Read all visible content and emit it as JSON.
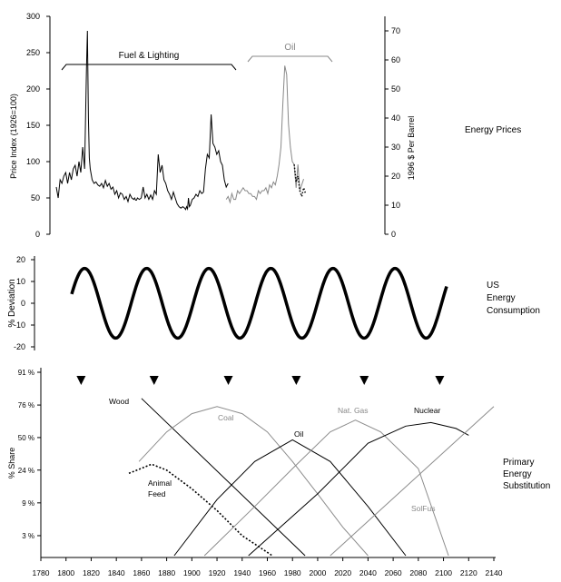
{
  "chart_data": [
    {
      "type": "line",
      "side_label": "Energy Prices",
      "ylabel_left": "Price Index (1926=100)",
      "ylabel_right": "1996 $ Per Barrel",
      "ylim_left": [
        0,
        300
      ],
      "ylim_right": [
        0,
        75
      ],
      "yticks_left": [
        "0",
        "50",
        "100",
        "150",
        "200",
        "250",
        "300"
      ],
      "yticks_right": [
        "0",
        "10",
        "20",
        "30",
        "40",
        "50",
        "60",
        "70"
      ],
      "annotations": [
        {
          "label": "Fuel & Lighting",
          "x_start": 1780,
          "x_end": 1962
        },
        {
          "label": "Oil",
          "x_start": 1982,
          "x_end": 2057
        }
      ],
      "series": [
        {
          "name": "Fuel & Lighting",
          "axis": "left",
          "x": [
            1780,
            1782,
            1784,
            1786,
            1788,
            1790,
            1792,
            1794,
            1796,
            1798,
            1800,
            1802,
            1804,
            1806,
            1808,
            1810,
            1812,
            1813,
            1814,
            1815,
            1816,
            1818,
            1820,
            1822,
            1824,
            1826,
            1828,
            1830,
            1832,
            1834,
            1836,
            1838,
            1840,
            1842,
            1844,
            1846,
            1848,
            1850,
            1852,
            1854,
            1856,
            1858,
            1860,
            1862,
            1863,
            1864,
            1865,
            1866,
            1868,
            1870,
            1872,
            1874,
            1876,
            1878,
            1880,
            1882,
            1884,
            1886,
            1888,
            1890,
            1892,
            1894,
            1896,
            1898,
            1900,
            1902,
            1904,
            1906,
            1908,
            1910,
            1912,
            1914,
            1916,
            1917,
            1918,
            1919,
            1920,
            1921,
            1922,
            1924,
            1926,
            1928,
            1930,
            1932,
            1934,
            1936
          ],
          "y": [
            65,
            50,
            75,
            70,
            80,
            85,
            70,
            85,
            75,
            90,
            95,
            80,
            100,
            85,
            120,
            90,
            230,
            280,
            160,
            105,
            90,
            75,
            70,
            72,
            68,
            66,
            70,
            64,
            74,
            66,
            70,
            62,
            65,
            55,
            60,
            50,
            57,
            55,
            48,
            52,
            45,
            55,
            50,
            48,
            50,
            47,
            47,
            50,
            48,
            50,
            65,
            50,
            55,
            48,
            54,
            48,
            60,
            55,
            110,
            85,
            95,
            75,
            70,
            60,
            55,
            48,
            58,
            50,
            42,
            38,
            36,
            38,
            36,
            34,
            38,
            35,
            50,
            38,
            40,
            48,
            50,
            55,
            52,
            60,
            56,
            58
          ]
        },
        {
          "name": "Fuel & Lighting (cont.)",
          "axis": "left",
          "x": [
            1936,
            1938,
            1940,
            1942,
            1944,
            1946,
            1948,
            1950,
            1952,
            1954,
            1956,
            1958,
            1960,
            1962
          ],
          "y": [
            58,
            90,
            110,
            105,
            165,
            125,
            120,
            110,
            115,
            100,
            95,
            75,
            65,
            70
          ]
        },
        {
          "name": "Oil",
          "axis": "right",
          "x": [
            1960,
            1962,
            1964,
            1966,
            1968,
            1970,
            1972,
            1974,
            1976,
            1978,
            1980,
            1982,
            1984,
            1986,
            1988,
            1990,
            1992,
            1994,
            1996,
            1998,
            2000,
            2002,
            2004,
            2006,
            2008,
            2010,
            2012,
            2014,
            2016,
            2018,
            2020,
            2022,
            2024,
            2026,
            2028,
            2030,
            2032,
            2034,
            2036,
            2038,
            2040,
            2042
          ],
          "y": [
            12,
            13,
            11,
            14,
            12,
            12,
            15,
            14,
            15,
            16,
            15,
            15,
            14,
            14,
            13,
            13,
            12,
            15,
            14,
            15,
            15,
            16,
            14,
            17,
            16,
            18,
            17,
            20,
            24,
            30,
            45,
            58,
            55,
            38,
            30,
            25,
            24,
            16,
            24,
            15,
            17,
            19
          ]
        },
        {
          "name": "Oil (recent, dotted)",
          "axis": "right",
          "x": [
            2032,
            2034,
            2036,
            2038,
            2040,
            2042,
            2044
          ],
          "y": [
            24,
            18,
            20,
            15,
            13,
            16,
            14
          ]
        }
      ]
    },
    {
      "type": "line",
      "side_label": "US\nEnergy\nConsumption",
      "ylabel": "% Deviation",
      "ylim": [
        -20,
        20
      ],
      "yticks": [
        "20",
        "10",
        "0",
        "-10",
        "-20"
      ],
      "series": [
        {
          "name": "Deviation (sine)",
          "x": [
            1800,
            2120
          ],
          "amplitude": 16,
          "period_years": 53,
          "peak_years": [
            1811,
            1864,
            1917,
            1970,
            2023,
            2076
          ]
        }
      ]
    },
    {
      "type": "line",
      "side_label": "Primary\nEnergy\nSubstitution",
      "ylabel": "% Share",
      "yticks": [
        "3 %",
        "9 %",
        "24 %",
        "50 %",
        "76 %",
        "91 %"
      ],
      "ytick_fractions": [
        3,
        9,
        24,
        50,
        76,
        91
      ],
      "xlim": [
        1780,
        2140
      ],
      "xticks": [
        "1780",
        "1800",
        "1820",
        "1840",
        "1860",
        "1880",
        "1900",
        "1920",
        "1940",
        "1960",
        "1980",
        "2000",
        "2020",
        "2040",
        "2060",
        "2080",
        "2100",
        "2120",
        "2140"
      ],
      "markers_years": [
        1812,
        1870,
        1929,
        1983,
        2037,
        2097
      ],
      "series": [
        {
          "name": "Wood",
          "style": "solid-black",
          "x": [
            1860,
            1990
          ],
          "y_pct": [
            80,
            1.5
          ]
        },
        {
          "name": "Animal Feed",
          "style": "dashed",
          "x": [
            1850,
            1868,
            1880,
            1900,
            1920,
            1940,
            1964
          ],
          "y_pct": [
            22,
            28,
            24,
            14,
            7,
            3,
            1.5
          ]
        },
        {
          "name": "Coal",
          "style": "gray-bell",
          "x": [
            1858,
            1880,
            1900,
            1920,
            1940,
            1960,
            1980,
            2000,
            2020,
            2040
          ],
          "y_pct": [
            30,
            55,
            70,
            75,
            70,
            55,
            30,
            12,
            4,
            1.5
          ]
        },
        {
          "name": "Oil",
          "style": "solid-black-bell",
          "x": [
            1886,
            1920,
            1950,
            1980,
            2010,
            2040,
            2070
          ],
          "y_pct": [
            1.5,
            10,
            30,
            48,
            30,
            8,
            1.5
          ]
        },
        {
          "name": "Nat. Gas",
          "style": "gray-bell",
          "x": [
            1910,
            1950,
            1980,
            2010,
            2030,
            2050,
            2080,
            2104
          ],
          "y_pct": [
            1.5,
            8,
            25,
            55,
            65,
            55,
            25,
            1.5
          ]
        },
        {
          "name": "Nuclear",
          "style": "solid-black-bell",
          "x": [
            1945,
            2000,
            2040,
            2070,
            2090,
            2110,
            2120
          ],
          "y_pct": [
            1.5,
            12,
            45,
            60,
            63,
            58,
            52
          ]
        },
        {
          "name": "SolFus",
          "style": "gray-line",
          "x": [
            2010,
            2140
          ],
          "y_pct": [
            1.5,
            75
          ]
        }
      ],
      "labels": [
        {
          "text": "Wood"
        },
        {
          "text": "Coal"
        },
        {
          "text": "Nat. Gas"
        },
        {
          "text": "Nuclear"
        },
        {
          "text": "Oil"
        },
        {
          "text": "Animal\nFeed"
        },
        {
          "text": "SolFus"
        }
      ]
    }
  ]
}
